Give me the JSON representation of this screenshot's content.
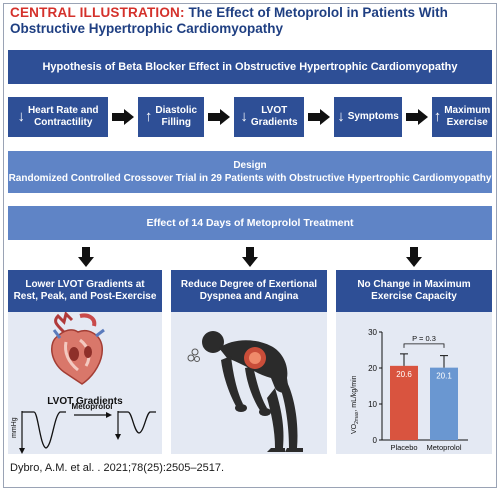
{
  "title": {
    "lead": "CENTRAL ILLUSTRATION:",
    "rest_line1": " The Effect of Metoprolol in Patients With",
    "line2": "Obstructive Hypertrophic Cardiomyopathy"
  },
  "hypothesis": "Hypothesis of Beta Blocker Effect in Obstructive Hypertrophic Cardiomyopathy",
  "flow": [
    {
      "line1": "Heart Rate and",
      "line2": "Contractility"
    },
    {
      "line1": "Diastolic",
      "line2": "Filling"
    },
    {
      "line1": "LVOT",
      "line2": "Gradients"
    },
    {
      "line1": "Symptoms",
      "line2": ""
    },
    {
      "line1": "Maximum",
      "line2": "Exercise"
    }
  ],
  "design": {
    "title": "Design",
    "text": "Randomized Controlled Crossover Trial in 29 Patients with Obstructive Hypertrophic Cardiomyopathy"
  },
  "effect": "Effect of 14 Days of Metoprolol Treatment",
  "panels": {
    "p1": {
      "title_line1": "Lower LVOT Gradients at",
      "title_line2": "Rest, Peak, and Post-Exercise",
      "sub_label": "LVOT Gradients",
      "axis_label": "mmHg",
      "arrow_label": "Metoprolol"
    },
    "p2": {
      "title_line1": "Reduce Degree of Exertional",
      "title_line2": "Dyspnea and Angina"
    },
    "p3": {
      "title_line1": "No Change in Maximum",
      "title_line2": "Exercise Capacity"
    }
  },
  "chart_data": {
    "type": "bar",
    "categories": [
      "Placebo",
      "Metoprolol"
    ],
    "values": [
      20.6,
      20.1
    ],
    "value_labels": [
      "20.6",
      "20.1"
    ],
    "ylabel_main": "VO",
    "ylabel_sub": "2max",
    "ylabel_unit": ", mL/kg/min",
    "ylim": [
      0,
      30
    ],
    "yticks": [
      "0",
      "10",
      "20",
      "30"
    ],
    "annotation": "P = 0.3",
    "colors": [
      "#d9543f",
      "#6a97d1"
    ]
  },
  "citation": "Dybro, A.M. et al. . 2021;78(25):2505–2517.",
  "colors": {
    "dark_blue": "#2e4f96",
    "mid_blue": "#5f84c6",
    "panel_bg": "#e4e9f3",
    "title_red": "#d4312b",
    "title_blue": "#1f3f82"
  }
}
